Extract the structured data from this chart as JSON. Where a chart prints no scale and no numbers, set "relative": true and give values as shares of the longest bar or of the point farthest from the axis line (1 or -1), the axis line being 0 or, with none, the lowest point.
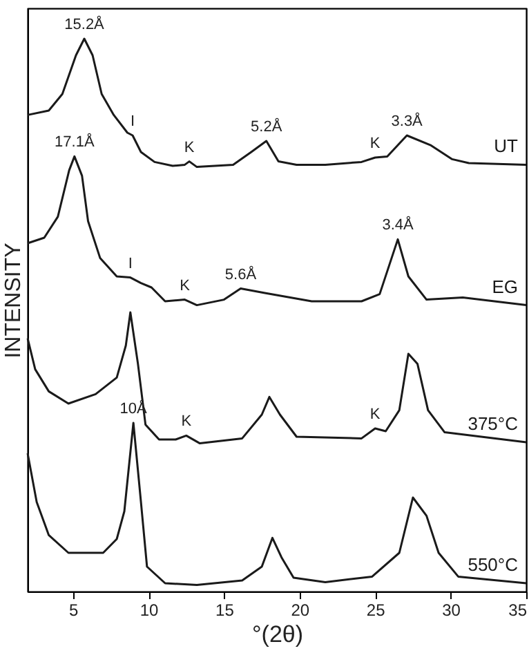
{
  "chart_data": {
    "type": "line",
    "relative": true,
    "xlabel": "°(2θ)",
    "ylabel": "INTENSITY",
    "xlim": [
      2,
      35
    ],
    "xticks": [
      5,
      10,
      15,
      20,
      25,
      30,
      35
    ],
    "grid": false,
    "marker": "none",
    "line_style": "solid",
    "series": [
      {
        "name": "UT",
        "color": "#1a1a1a",
        "x": [
          2,
          3.4,
          4.3,
          5.2,
          5.75,
          6.3,
          6.9,
          7.7,
          8.6,
          8.95,
          9.5,
          10.4,
          11.6,
          12.4,
          12.7,
          13.2,
          15.6,
          16.8,
          17.8,
          18.6,
          19.8,
          21.7,
          24.1,
          25.0,
          25.8,
          27.1,
          28.7,
          30.1,
          31.2,
          35
        ],
        "values": [
          0.862,
          0.87,
          0.9,
          0.97,
          1.0,
          0.97,
          0.9,
          0.862,
          0.83,
          0.825,
          0.795,
          0.777,
          0.77,
          0.772,
          0.778,
          0.768,
          0.772,
          0.795,
          0.815,
          0.778,
          0.772,
          0.772,
          0.777,
          0.785,
          0.787,
          0.825,
          0.807,
          0.782,
          0.775,
          0.772
        ]
      },
      {
        "name": "EG",
        "color": "#1a1a1a",
        "x": [
          2,
          3.1,
          4.0,
          4.75,
          5.1,
          5.6,
          6.0,
          6.8,
          7.9,
          8.8,
          9.5,
          10.2,
          11.1,
          12.4,
          13.2,
          15.0,
          16.1,
          17.7,
          20.8,
          24.1,
          25.3,
          26.5,
          27.2,
          28.4,
          30.8,
          35
        ],
        "values": [
          0.63,
          0.64,
          0.678,
          0.762,
          0.787,
          0.752,
          0.67,
          0.603,
          0.57,
          0.568,
          0.558,
          0.55,
          0.525,
          0.528,
          0.518,
          0.528,
          0.548,
          0.54,
          0.525,
          0.525,
          0.538,
          0.637,
          0.57,
          0.528,
          0.532,
          0.518
        ]
      },
      {
        "name": "375°C",
        "color": "#1a1a1a",
        "x": [
          2,
          2.5,
          3.4,
          4.7,
          6.5,
          7.9,
          8.5,
          8.8,
          9.3,
          9.8,
          10.7,
          11.8,
          12.5,
          13.4,
          16.2,
          17.5,
          18.0,
          18.7,
          19.8,
          24.1,
          25.0,
          25.7,
          26.6,
          27.2,
          27.8,
          28.5,
          29.6,
          35
        ],
        "values": [
          0.458,
          0.402,
          0.362,
          0.34,
          0.357,
          0.387,
          0.445,
          0.505,
          0.412,
          0.302,
          0.275,
          0.275,
          0.282,
          0.268,
          0.277,
          0.32,
          0.352,
          0.32,
          0.28,
          0.277,
          0.295,
          0.29,
          0.328,
          0.43,
          0.412,
          0.328,
          0.288,
          0.27
        ]
      },
      {
        "name": "550°C",
        "color": "#1a1a1a",
        "x": [
          2,
          2.6,
          3.4,
          4.7,
          7.0,
          7.9,
          8.4,
          9.0,
          9.5,
          9.9,
          11.1,
          13.2,
          16.2,
          17.5,
          18.2,
          18.8,
          19.6,
          21.7,
          24.8,
          26.6,
          27.5,
          28.4,
          29.2,
          30.5,
          35
        ],
        "values": [
          0.25,
          0.162,
          0.102,
          0.07,
          0.07,
          0.095,
          0.145,
          0.305,
          0.162,
          0.045,
          0.015,
          0.012,
          0.02,
          0.045,
          0.097,
          0.062,
          0.025,
          0.017,
          0.027,
          0.07,
          0.17,
          0.137,
          0.07,
          0.027,
          0.015
        ]
      }
    ],
    "annotations": [
      {
        "text": "15.2Å",
        "x": 5.75,
        "y": 1.0
      },
      {
        "text": "I",
        "x": 8.95,
        "y": 0.825
      },
      {
        "text": "K",
        "x": 12.7,
        "y": 0.778
      },
      {
        "text": "5.2Å",
        "x": 17.8,
        "y": 0.815
      },
      {
        "text": "K",
        "x": 25.0,
        "y": 0.785
      },
      {
        "text": "3.3Å",
        "x": 27.1,
        "y": 0.825
      },
      {
        "text": "17.1Å",
        "x": 5.1,
        "y": 0.787
      },
      {
        "text": "I",
        "x": 8.8,
        "y": 0.568
      },
      {
        "text": "K",
        "x": 12.4,
        "y": 0.528
      },
      {
        "text": "5.6Å",
        "x": 16.1,
        "y": 0.548
      },
      {
        "text": "3.4Å",
        "x": 26.5,
        "y": 0.637
      },
      {
        "text": "K",
        "x": 12.5,
        "y": 0.282
      },
      {
        "text": "K",
        "x": 25.0,
        "y": 0.295
      },
      {
        "text": "10Å",
        "x": 9.0,
        "y": 0.305
      }
    ]
  }
}
